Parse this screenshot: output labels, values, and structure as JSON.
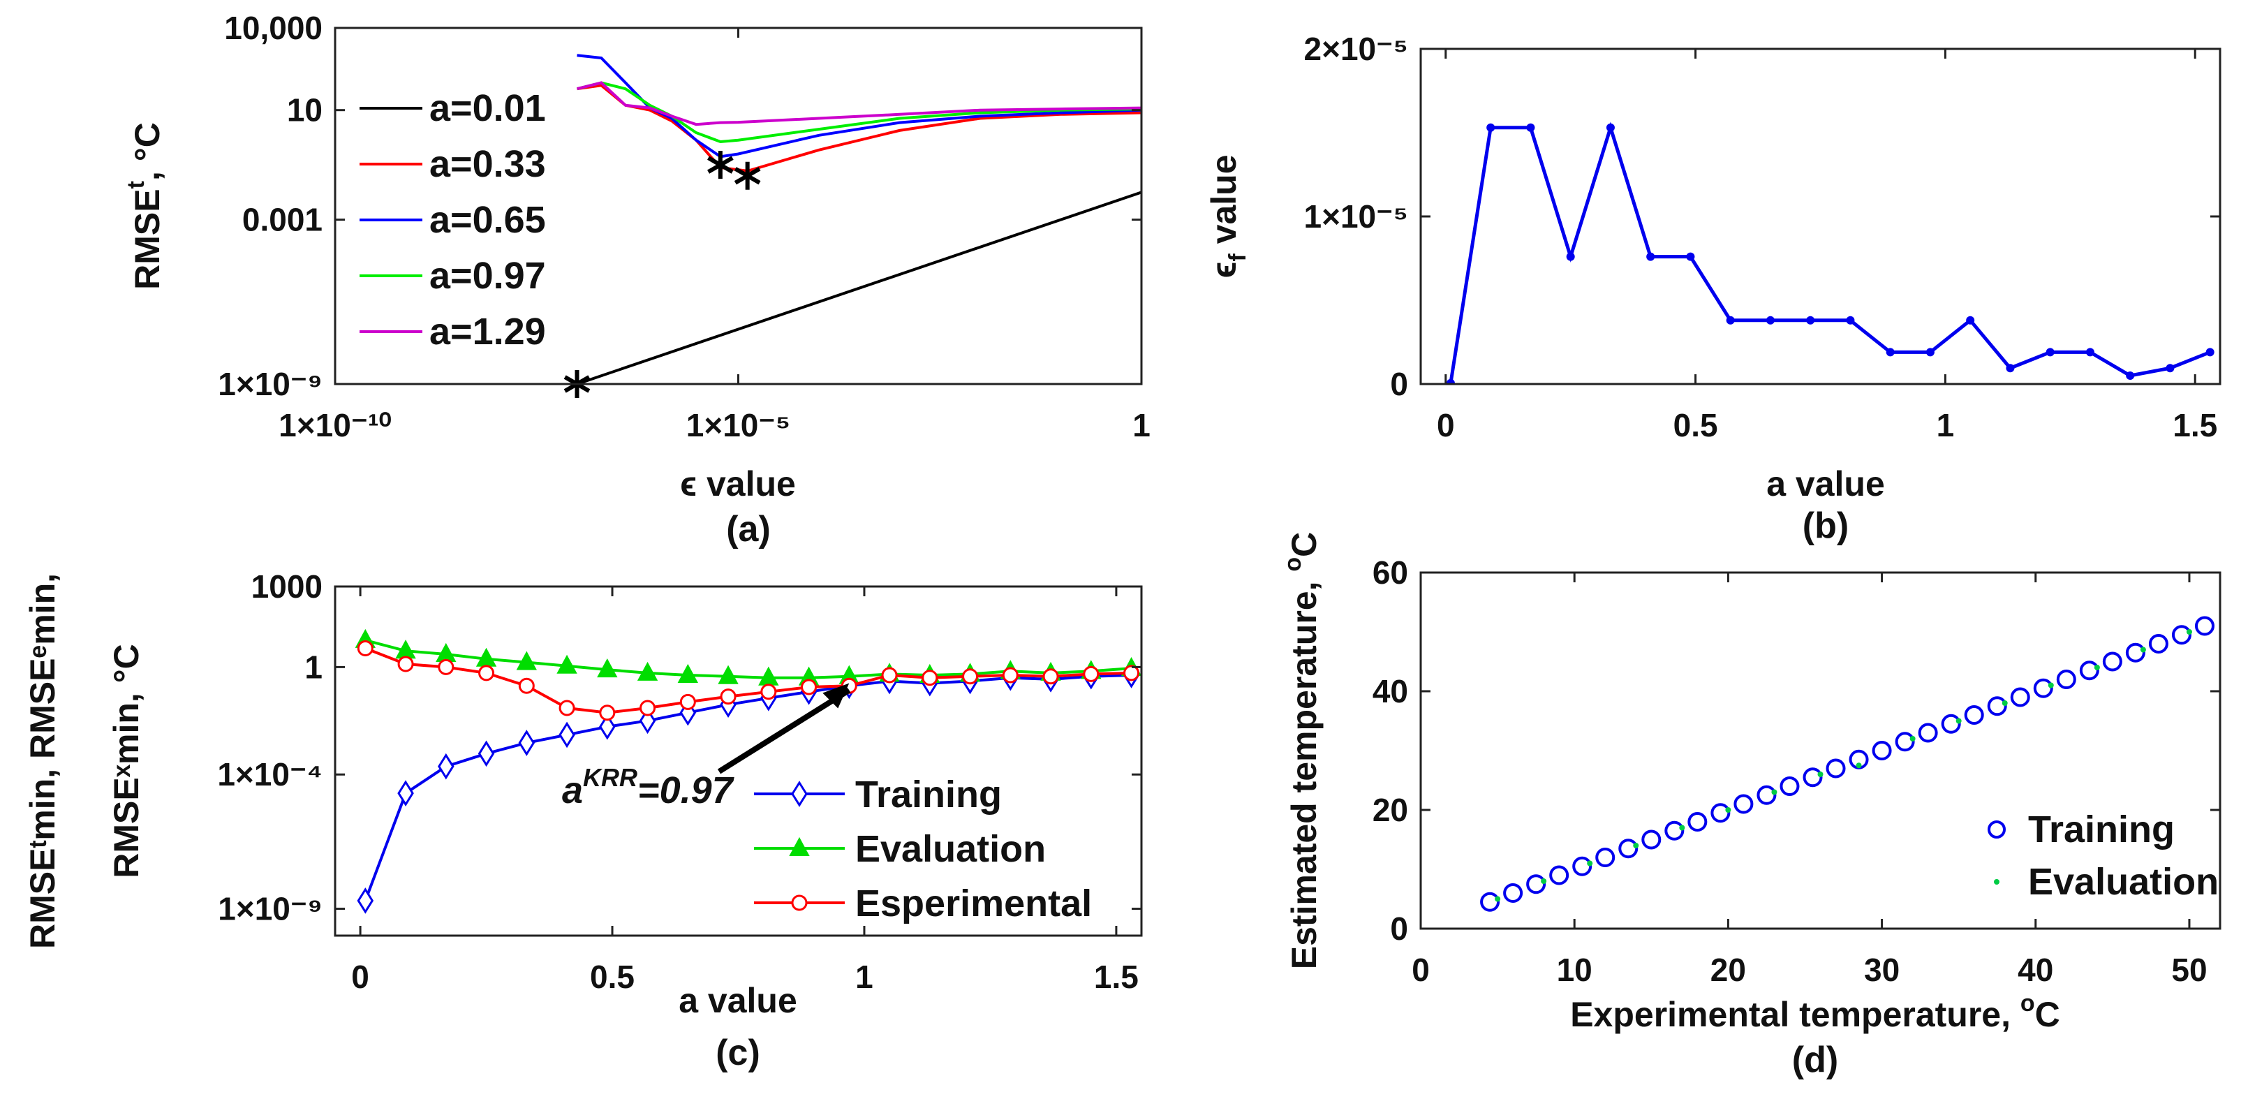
{
  "chart_data": [
    {
      "panel": "(a)",
      "type": "line",
      "xscale": "log",
      "yscale": "log",
      "xlabel": "ϵ value",
      "ylabel_main": "RMSE",
      "ylabel_sup": "t",
      "ylabel_rest": ", °C",
      "xlim": [
        1e-10,
        1
      ],
      "ylim": [
        1e-09,
        10000
      ],
      "xticks": [
        1e-10,
        1e-05,
        1
      ],
      "xtick_labels": [
        "1×10⁻¹⁰",
        "1×10⁻⁵",
        "1"
      ],
      "yticks": [
        1e-09,
        0.001,
        10,
        10000
      ],
      "ytick_labels": [
        "1×10⁻⁹",
        "0.001",
        "10",
        "10,000"
      ],
      "legend_position": "left",
      "series": [
        {
          "name": "a=0.01",
          "color": "#000000",
          "x": [
            1e-07,
            1
          ],
          "y": [
            1e-09,
            0.01
          ]
        },
        {
          "name": "a=0.33",
          "color": "#ff0000",
          "x": [
            1e-07,
            2e-07,
            4e-07,
            8e-07,
            1.5e-06,
            3e-06,
            6e-06,
            1.3e-05,
            0.0001,
            0.001,
            0.01,
            0.1,
            1
          ],
          "y": [
            60,
            80,
            15,
            10,
            4,
            0.8,
            0.08,
            0.06,
            0.35,
            1.8,
            5,
            7,
            8
          ]
        },
        {
          "name": "a=0.65",
          "color": "#0000ff",
          "x": [
            1e-07,
            2e-07,
            4e-07,
            8e-07,
            1.5e-06,
            3e-06,
            6e-06,
            1e-05,
            0.0001,
            0.001,
            0.01,
            0.1,
            1
          ],
          "y": [
            1000,
            800,
            100,
            12,
            5,
            0.8,
            0.2,
            0.25,
            1.2,
            3.5,
            6,
            8,
            10
          ]
        },
        {
          "name": "a=0.97",
          "color": "#00ee00",
          "x": [
            1e-07,
            2e-07,
            4e-07,
            8e-07,
            1.5e-06,
            3e-06,
            6e-06,
            1e-05,
            0.0001,
            0.001,
            0.01,
            0.1,
            1
          ],
          "y": [
            60,
            100,
            60,
            15,
            6,
            1.5,
            0.7,
            0.8,
            2,
            5,
            8,
            10,
            11
          ]
        },
        {
          "name": "a=1.29",
          "color": "#cc00cc",
          "x": [
            1e-07,
            2e-07,
            4e-07,
            8e-07,
            1.5e-06,
            3e-06,
            6e-06,
            1e-05,
            0.0001,
            0.001,
            0.01,
            0.1,
            1
          ],
          "y": [
            60,
            100,
            15,
            12,
            6,
            3,
            3.5,
            3.6,
            5,
            7,
            10,
            11,
            12
          ]
        }
      ],
      "markers": [
        {
          "x": 1e-07,
          "y": 1e-09
        },
        {
          "x": 6e-06,
          "y": 0.1
        },
        {
          "x": 1.3e-05,
          "y": 0.04
        }
      ]
    },
    {
      "panel": "(b)",
      "type": "line",
      "xlabel": "a value",
      "ylabel_main": "ϵ",
      "ylabel_sub": "f",
      "ylabel_rest": " value",
      "xlim": [
        -0.05,
        1.55
      ],
      "ylim": [
        0,
        2e-05
      ],
      "xticks": [
        0,
        0.5,
        1,
        1.5
      ],
      "xtick_labels": [
        "0",
        "0.5",
        "1",
        "1.5"
      ],
      "yticks": [
        0,
        1e-05,
        2e-05
      ],
      "ytick_labels": [
        "0",
        "1×10⁻⁵",
        "2×10⁻⁵"
      ],
      "color": "#0000ee",
      "x": [
        0.01,
        0.09,
        0.17,
        0.25,
        0.33,
        0.41,
        0.49,
        0.57,
        0.65,
        0.73,
        0.81,
        0.89,
        0.97,
        1.05,
        1.13,
        1.21,
        1.29,
        1.37,
        1.45,
        1.53
      ],
      "y": [
        5e-08,
        1.53e-05,
        1.53e-05,
        7.6e-06,
        1.53e-05,
        7.6e-06,
        7.6e-06,
        3.8e-06,
        3.8e-06,
        3.8e-06,
        3.8e-06,
        1.9e-06,
        1.9e-06,
        3.8e-06,
        9.5e-07,
        1.9e-06,
        1.9e-06,
        5e-07,
        9.5e-07,
        1.9e-06
      ]
    },
    {
      "panel": "(c)",
      "type": "line",
      "yscale": "log",
      "xlabel": "a value",
      "ylabel_line1": "RMSEᵗmin, RMSEᵉmin,",
      "ylabel_line2": "RMSEˣmin, °C",
      "xlim": [
        -0.05,
        1.55
      ],
      "ylim": [
        1e-10,
        1000
      ],
      "xticks": [
        0,
        0.5,
        1,
        1.5
      ],
      "xtick_labels": [
        "0",
        "0.5",
        "1",
        "1.5"
      ],
      "yticks": [
        1e-09,
        0.0001,
        1,
        1000
      ],
      "ytick_labels": [
        "1×10⁻⁹",
        "1×10⁻⁴",
        "1",
        "1000"
      ],
      "annotation": {
        "text_main": "a",
        "text_sup": "KRR",
        "text_rest": "=0.97",
        "arrow_to_x": 0.97,
        "arrow_to_y": 0.25
      },
      "legend_position": "bottom-right",
      "x": [
        0.01,
        0.09,
        0.17,
        0.25,
        0.33,
        0.41,
        0.49,
        0.57,
        0.65,
        0.73,
        0.81,
        0.89,
        0.97,
        1.05,
        1.13,
        1.21,
        1.29,
        1.37,
        1.45,
        1.53
      ],
      "series": [
        {
          "name": "Training",
          "color": "#0000ee",
          "marker": "diamond",
          "y": [
            2e-09,
            2e-05,
            0.0002,
            0.0006,
            0.0015,
            0.003,
            0.006,
            0.01,
            0.02,
            0.04,
            0.07,
            0.12,
            0.2,
            0.3,
            0.25,
            0.3,
            0.4,
            0.35,
            0.45,
            0.5
          ]
        },
        {
          "name": "Evaluation",
          "color": "#00dd00",
          "marker": "triangle",
          "y": [
            10,
            4,
            3,
            2,
            1.5,
            1.1,
            0.8,
            0.6,
            0.5,
            0.45,
            0.4,
            0.4,
            0.45,
            0.55,
            0.5,
            0.55,
            0.7,
            0.6,
            0.7,
            0.9
          ]
        },
        {
          "name": "Esperimental",
          "color": "#ff0000",
          "marker": "circle",
          "y": [
            5,
            1.3,
            1.0,
            0.6,
            0.2,
            0.03,
            0.02,
            0.03,
            0.05,
            0.08,
            0.12,
            0.18,
            0.2,
            0.5,
            0.4,
            0.45,
            0.5,
            0.45,
            0.55,
            0.6
          ]
        }
      ]
    },
    {
      "panel": "(d)",
      "type": "scatter",
      "xlabel_main": "Experimental temperature, ",
      "xlabel_sup": "o",
      "xlabel_rest": "C",
      "ylabel_main": "Estimated temperature, ",
      "ylabel_sup": "o",
      "ylabel_rest": "C",
      "xlim": [
        0,
        52
      ],
      "ylim": [
        0,
        60
      ],
      "xticks": [
        0,
        10,
        20,
        30,
        40,
        50
      ],
      "xtick_labels": [
        "0",
        "10",
        "20",
        "30",
        "40",
        "50"
      ],
      "yticks": [
        0,
        20,
        40,
        60
      ],
      "ytick_labels": [
        "0",
        "20",
        "40",
        "60"
      ],
      "legend_position": "bottom-right",
      "series": [
        {
          "name": "Training",
          "color": "#0000ee",
          "marker": "circle",
          "x": [
            4.5,
            6,
            7.5,
            9,
            10.5,
            12,
            13.5,
            15,
            16.5,
            18,
            19.5,
            21,
            22.5,
            24,
            25.5,
            27,
            28.5,
            30,
            31.5,
            33,
            34.5,
            36,
            37.5,
            39,
            40.5,
            42,
            43.5,
            45,
            46.5,
            48,
            49.5,
            51
          ],
          "y": [
            4.5,
            6,
            7.5,
            9,
            10.5,
            12,
            13.5,
            15,
            16.5,
            18,
            19.5,
            21,
            22.5,
            24,
            25.5,
            27,
            28.5,
            30,
            31.5,
            33,
            34.5,
            36,
            37.5,
            39,
            40.5,
            42,
            43.5,
            45,
            46.5,
            48,
            49.5,
            51
          ]
        },
        {
          "name": "Evaluation",
          "color": "#00cc44",
          "marker": "dot",
          "x": [
            5,
            8,
            11,
            14,
            17,
            20,
            23,
            26,
            28.5,
            32,
            35,
            38,
            41,
            44,
            47,
            50
          ],
          "y": [
            5,
            8,
            11,
            14,
            17,
            20,
            23,
            26,
            27.5,
            32,
            35,
            38,
            41,
            44,
            47,
            50
          ]
        }
      ]
    }
  ]
}
